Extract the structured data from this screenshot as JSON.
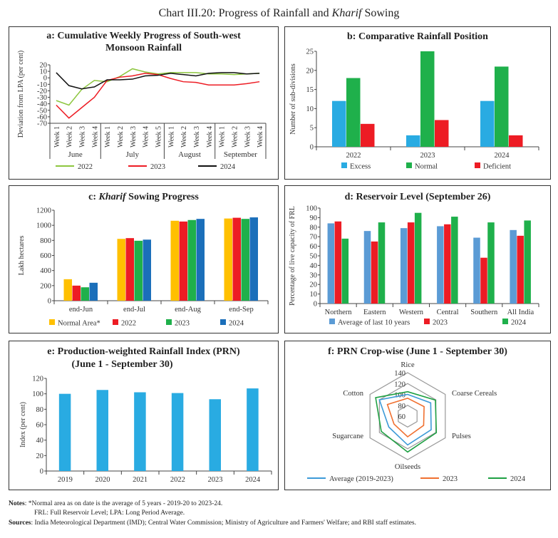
{
  "title": {
    "prefix": "Chart III.20: Progress of Rainfall and ",
    "italic": "Kharif",
    "suffix": " Sowing"
  },
  "chart_data": [
    {
      "id": "a",
      "type": "line",
      "title": "a: Cumulative Weekly Progress of South-west Monsoon Rainfall",
      "ylabel": "Deviation from LPA (per cent)",
      "ylim": [
        -70,
        20
      ],
      "yticks": [
        20,
        10,
        0,
        -10,
        -20,
        -30,
        -40,
        -50,
        -60,
        -70
      ],
      "categories": [
        "Week 1",
        "Week 2",
        "Week 3",
        "Week 4",
        "Week 1",
        "Week 2",
        "Week 3",
        "Week 4",
        "Week 5",
        "Week 1",
        "Week 2",
        "Week 3",
        "Week 4",
        "Week 1",
        "Week 2",
        "Week 3",
        "Week 4"
      ],
      "groups": [
        {
          "label": "June",
          "count": 4
        },
        {
          "label": "July",
          "count": 5
        },
        {
          "label": "August",
          "count": 4
        },
        {
          "label": "September",
          "count": 4
        }
      ],
      "series": [
        {
          "name": "2022",
          "color": "#8dc63f",
          "values": [
            -35,
            -42,
            -18,
            -4,
            -6,
            2,
            14,
            9,
            6,
            8,
            8,
            8,
            6,
            6,
            5,
            6,
            7
          ]
        },
        {
          "name": "2023",
          "color": "#ed1c24",
          "values": [
            -42,
            -62,
            -46,
            -30,
            -4,
            1,
            3,
            7,
            5,
            -1,
            -6,
            -7,
            -11,
            -11,
            -11,
            -9,
            -6
          ]
        },
        {
          "name": "2024",
          "color": "#111111",
          "values": [
            8,
            -12,
            -17,
            -14,
            -3,
            -3,
            -2,
            3,
            4,
            7,
            5,
            3,
            7,
            8,
            8,
            6,
            7
          ]
        }
      ]
    },
    {
      "id": "b",
      "type": "bar",
      "title": "b: Comparative Rainfall Position",
      "ylabel": "Number of sub-divisions",
      "ylim": [
        0,
        25
      ],
      "yticks": [
        0,
        5,
        10,
        15,
        20,
        25
      ],
      "categories": [
        "2022",
        "2023",
        "2024"
      ],
      "series": [
        {
          "name": "Excess",
          "color": "#29abe2",
          "values": [
            12,
            3,
            12
          ]
        },
        {
          "name": "Normal",
          "color": "#1fb04b",
          "values": [
            18,
            25,
            21
          ]
        },
        {
          "name": "Deficient",
          "color": "#ed1c24",
          "values": [
            6,
            7,
            3
          ]
        }
      ]
    },
    {
      "id": "c",
      "type": "bar",
      "title_prefix": "c: ",
      "title_italic": "Kharif",
      "title_suffix": " Sowing Progress",
      "ylabel": "Lakh hectares",
      "ylim": [
        0,
        1200
      ],
      "yticks": [
        0,
        200,
        400,
        600,
        800,
        1000,
        1200
      ],
      "categories": [
        "end-Jun",
        "end-Jul",
        "end-Aug",
        "end-Sep"
      ],
      "series": [
        {
          "name": "Normal Area*",
          "color": "#ffc000",
          "values": [
            285,
            820,
            1060,
            1090
          ]
        },
        {
          "name": "2022",
          "color": "#ed1c24",
          "values": [
            200,
            830,
            1050,
            1100
          ]
        },
        {
          "name": "2023",
          "color": "#1fb04b",
          "values": [
            178,
            795,
            1070,
            1085
          ]
        },
        {
          "name": "2024",
          "color": "#1b6fba",
          "values": [
            238,
            810,
            1085,
            1105
          ]
        }
      ]
    },
    {
      "id": "d",
      "type": "bar",
      "title": "d: Reservoir Level (September 26)",
      "ylabel": "Percentage of live capacity of FRL",
      "ylim": [
        0,
        100
      ],
      "yticks": [
        0,
        10,
        20,
        30,
        40,
        50,
        60,
        70,
        80,
        90,
        100
      ],
      "categories": [
        "Northern",
        "Eastern",
        "Western",
        "Central",
        "Southern",
        "All India"
      ],
      "series": [
        {
          "name": "Average of last 10 years",
          "color": "#5b9bd5",
          "values": [
            84,
            76,
            79,
            81,
            69,
            77
          ]
        },
        {
          "name": "2023",
          "color": "#ed1c24",
          "values": [
            86,
            65,
            85,
            83,
            48,
            71
          ]
        },
        {
          "name": "2024",
          "color": "#1fb04b",
          "values": [
            68,
            85,
            95,
            91,
            85,
            87
          ]
        }
      ]
    },
    {
      "id": "e",
      "type": "bar",
      "title": "e: Production-weighted Rainfall Index  (PRN)",
      "title2": "(June 1 - September 30)",
      "ylabel": "Index (per cent)",
      "ylim": [
        0,
        120
      ],
      "yticks": [
        0,
        20,
        40,
        60,
        80,
        100,
        120
      ],
      "categories": [
        "2019",
        "2020",
        "2021",
        "2022",
        "2023",
        "2024"
      ],
      "series": [
        {
          "color": "#29abe2",
          "values": [
            100,
            105,
            102,
            101,
            93,
            107
          ]
        }
      ]
    },
    {
      "id": "f",
      "type": "radar",
      "title": "f: PRN Crop-wise (June 1 - September 30)",
      "rlim": [
        60,
        140
      ],
      "rticks": [
        60,
        80,
        100,
        120,
        140
      ],
      "categories": [
        "Rice",
        "Coarse Cereals",
        "Pulses",
        "Oilseeds",
        "Sugarcane",
        "Cotton"
      ],
      "series": [
        {
          "name": "Average (2019-2023)",
          "color": "#3d9ad8",
          "values": [
            100,
            109,
            110,
            113,
            100,
            120
          ]
        },
        {
          "name": "2023",
          "color": "#f07030",
          "values": [
            93,
            95,
            94,
            98,
            89,
            103
          ]
        },
        {
          "name": "2024",
          "color": "#1fa043",
          "values": [
            105,
            119,
            121,
            126,
            116,
            128
          ]
        }
      ]
    }
  ],
  "notes": {
    "label": "Notes",
    "line1": ": *Normal area as on date is the average of 5 years - 2019-20 to 2023-24.",
    "line2": "FRL: Full Reservoir Level; LPA: Long Period Average.",
    "sources_label": "Sources",
    "sources": ": India Meteorological Department (IMD); Central Water Commission; Ministry of Agriculture and Farmers' Welfare; and RBI staff estimates."
  }
}
